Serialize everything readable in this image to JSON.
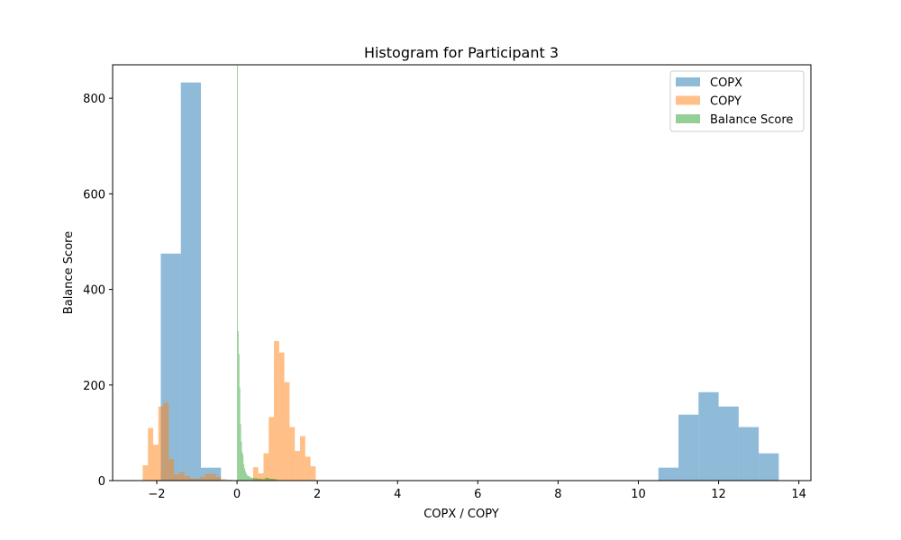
{
  "chart_data": {
    "type": "bar",
    "title": "Histogram for Participant 3",
    "xlabel": "COPX / COPY",
    "ylabel": "Balance Score",
    "xlim": [
      -3.1,
      14.3
    ],
    "ylim": [
      0,
      870
    ],
    "xticks": [
      -2,
      0,
      2,
      4,
      6,
      8,
      10,
      12,
      14
    ],
    "yticks": [
      0,
      200,
      400,
      600,
      800
    ],
    "grid": false,
    "legend_position": "top-right",
    "series": [
      {
        "name": "COPX",
        "color": "#1f77b4",
        "opacity": 0.5,
        "bins": [
          {
            "x0": -1.9,
            "x1": -1.4,
            "y": 475
          },
          {
            "x0": -1.4,
            "x1": -0.9,
            "y": 833
          },
          {
            "x0": -0.9,
            "x1": -0.4,
            "y": 27
          },
          {
            "x0": 10.5,
            "x1": 11.0,
            "y": 27
          },
          {
            "x0": 11.0,
            "x1": 11.5,
            "y": 138
          },
          {
            "x0": 11.5,
            "x1": 12.0,
            "y": 185
          },
          {
            "x0": 12.0,
            "x1": 12.5,
            "y": 155
          },
          {
            "x0": 12.5,
            "x1": 13.0,
            "y": 112
          },
          {
            "x0": 13.0,
            "x1": 13.5,
            "y": 57
          }
        ]
      },
      {
        "name": "COPY",
        "color": "#ff7f0e",
        "opacity": 0.5,
        "bins": [
          {
            "x0": -2.35,
            "x1": -2.22,
            "y": 32
          },
          {
            "x0": -2.22,
            "x1": -2.09,
            "y": 110
          },
          {
            "x0": -2.09,
            "x1": -1.96,
            "y": 75
          },
          {
            "x0": -1.96,
            "x1": -1.83,
            "y": 155
          },
          {
            "x0": -1.83,
            "x1": -1.7,
            "y": 163
          },
          {
            "x0": -1.7,
            "x1": -1.57,
            "y": 45
          },
          {
            "x0": -1.57,
            "x1": -1.44,
            "y": 13
          },
          {
            "x0": -1.44,
            "x1": -1.31,
            "y": 18
          },
          {
            "x0": -1.31,
            "x1": -1.18,
            "y": 10
          },
          {
            "x0": -1.18,
            "x1": -1.05,
            "y": 5
          },
          {
            "x0": -1.05,
            "x1": -0.92,
            "y": 4
          },
          {
            "x0": -0.92,
            "x1": -0.79,
            "y": 8
          },
          {
            "x0": -0.79,
            "x1": -0.66,
            "y": 14
          },
          {
            "x0": -0.66,
            "x1": -0.53,
            "y": 14
          },
          {
            "x0": -0.53,
            "x1": -0.4,
            "y": 8
          },
          {
            "x0": -0.4,
            "x1": -0.27,
            "y": 3
          },
          {
            "x0": -0.27,
            "x1": -0.14,
            "y": 2
          },
          {
            "x0": 0.4,
            "x1": 0.53,
            "y": 28
          },
          {
            "x0": 0.53,
            "x1": 0.66,
            "y": 15
          },
          {
            "x0": 0.66,
            "x1": 0.79,
            "y": 57
          },
          {
            "x0": 0.79,
            "x1": 0.92,
            "y": 133
          },
          {
            "x0": 0.92,
            "x1": 1.05,
            "y": 292
          },
          {
            "x0": 1.05,
            "x1": 1.18,
            "y": 268
          },
          {
            "x0": 1.18,
            "x1": 1.31,
            "y": 206
          },
          {
            "x0": 1.31,
            "x1": 1.44,
            "y": 112
          },
          {
            "x0": 1.44,
            "x1": 1.57,
            "y": 62
          },
          {
            "x0": 1.57,
            "x1": 1.7,
            "y": 93
          },
          {
            "x0": 1.7,
            "x1": 1.83,
            "y": 50
          },
          {
            "x0": 1.83,
            "x1": 1.96,
            "y": 30
          }
        ]
      },
      {
        "name": "Balance Score",
        "color": "#2ca02c",
        "opacity": 0.5,
        "bins": [
          {
            "x0": 0.0,
            "x1": 0.02,
            "y": 868
          },
          {
            "x0": 0.02,
            "x1": 0.04,
            "y": 313
          },
          {
            "x0": 0.04,
            "x1": 0.06,
            "y": 265
          },
          {
            "x0": 0.06,
            "x1": 0.08,
            "y": 195
          },
          {
            "x0": 0.08,
            "x1": 0.1,
            "y": 118
          },
          {
            "x0": 0.1,
            "x1": 0.12,
            "y": 82
          },
          {
            "x0": 0.12,
            "x1": 0.14,
            "y": 60
          },
          {
            "x0": 0.14,
            "x1": 0.16,
            "y": 54
          },
          {
            "x0": 0.16,
            "x1": 0.18,
            "y": 35
          },
          {
            "x0": 0.18,
            "x1": 0.2,
            "y": 26
          },
          {
            "x0": 0.2,
            "x1": 0.22,
            "y": 20
          },
          {
            "x0": 0.22,
            "x1": 0.24,
            "y": 15
          },
          {
            "x0": 0.24,
            "x1": 0.26,
            "y": 12
          },
          {
            "x0": 0.26,
            "x1": 0.3,
            "y": 10
          },
          {
            "x0": 0.3,
            "x1": 0.34,
            "y": 8
          },
          {
            "x0": 0.34,
            "x1": 0.4,
            "y": 6
          },
          {
            "x0": 0.4,
            "x1": 0.5,
            "y": 5
          },
          {
            "x0": 0.5,
            "x1": 0.6,
            "y": 4
          },
          {
            "x0": 0.6,
            "x1": 0.7,
            "y": 3
          },
          {
            "x0": 0.7,
            "x1": 0.8,
            "y": 6
          },
          {
            "x0": 0.8,
            "x1": 0.9,
            "y": 4
          },
          {
            "x0": 0.9,
            "x1": 1.0,
            "y": 3
          }
        ]
      }
    ]
  }
}
